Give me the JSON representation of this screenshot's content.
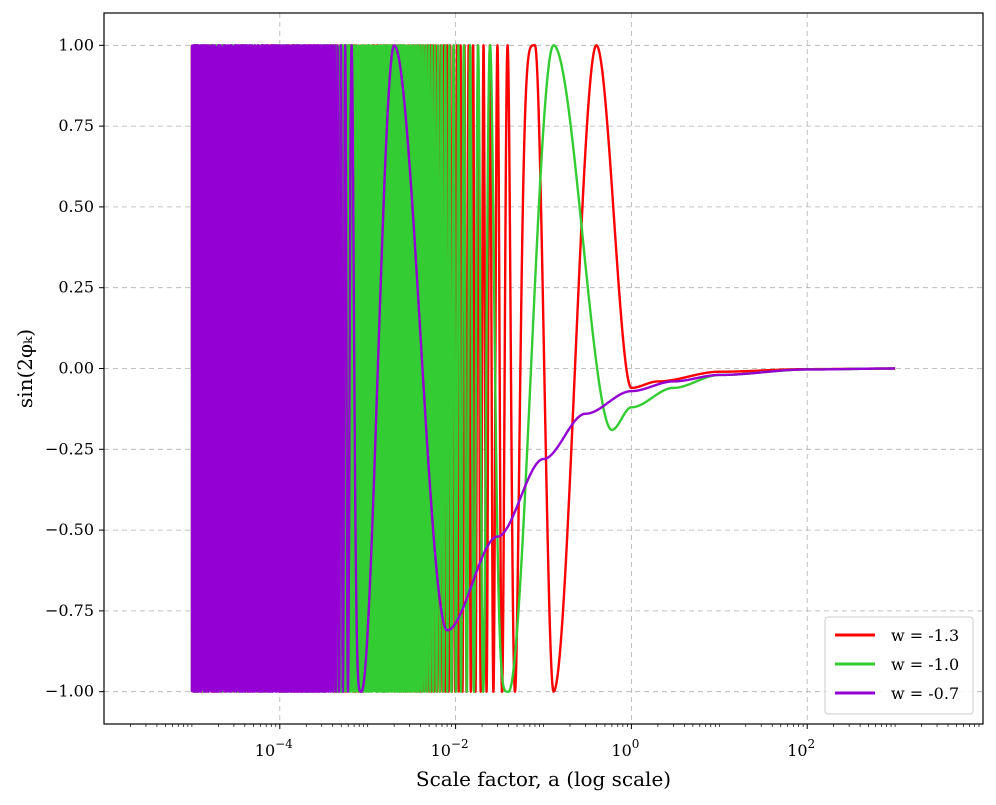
{
  "chart_data": {
    "type": "line",
    "title": "",
    "xlabel": "Scale factor, a (log scale)",
    "ylabel": "sin(2φₖ)",
    "x_scale": "log",
    "xlim": [
      1e-06,
      10000.0
    ],
    "ylim": [
      -1.1,
      1.1
    ],
    "grid": true,
    "legend_position": "lower right",
    "x_ticks": [
      {
        "value": 0.0001,
        "base": "10",
        "exp": "−4"
      },
      {
        "value": 0.01,
        "base": "10",
        "exp": "−2"
      },
      {
        "value": 1,
        "base": "10",
        "exp": "0"
      },
      {
        "value": 100,
        "base": "10",
        "exp": "2"
      }
    ],
    "y_ticks": [
      {
        "value": 1.0,
        "label": "1.00"
      },
      {
        "value": 0.75,
        "label": "0.75"
      },
      {
        "value": 0.5,
        "label": "0.50"
      },
      {
        "value": 0.25,
        "label": "0.25"
      },
      {
        "value": 0.0,
        "label": "0.00"
      },
      {
        "value": -0.25,
        "label": "−0.25"
      },
      {
        "value": -0.5,
        "label": "−0.50"
      },
      {
        "value": -0.75,
        "label": "−0.75"
      },
      {
        "value": -1.0,
        "label": "−1.00"
      }
    ],
    "series": [
      {
        "name": "w = -1.3",
        "color": "#ff0000",
        "x_range": [
          1e-05,
          1000
        ],
        "envelope": [
          [
            1e-05,
            1.0
          ],
          [
            0.5,
            1.0
          ],
          [
            1,
            0.0
          ]
        ],
        "oscillating_until": 0.5,
        "points": [
          [
            0.08,
            1.0
          ],
          [
            0.13,
            -1.0
          ],
          [
            0.4,
            1.0
          ],
          [
            1.0,
            -0.06
          ],
          [
            2.0,
            -0.04
          ],
          [
            10,
            -0.01
          ],
          [
            100,
            -0.002
          ],
          [
            1000,
            0.0
          ]
        ]
      },
      {
        "name": "w = -1.0",
        "color": "#33cc33",
        "x_range": [
          1e-05,
          1000
        ],
        "oscillating_until": 0.13,
        "points": [
          [
            0.04,
            -1.0
          ],
          [
            0.13,
            1.0
          ],
          [
            0.6,
            -0.19
          ],
          [
            1.0,
            -0.12
          ],
          [
            3.0,
            -0.06
          ],
          [
            10,
            -0.02
          ],
          [
            100,
            -0.003
          ],
          [
            1000,
            0.0
          ]
        ]
      },
      {
        "name": "w = -0.7",
        "color": "#9400d3",
        "x_range": [
          1e-05,
          1000
        ],
        "oscillating_until": 0.002,
        "points": [
          [
            0.00085,
            -1.0
          ],
          [
            0.002,
            1.0
          ],
          [
            0.008,
            -0.81
          ],
          [
            0.03,
            -0.52
          ],
          [
            0.1,
            -0.28
          ],
          [
            0.3,
            -0.14
          ],
          [
            1.0,
            -0.07
          ],
          [
            3.0,
            -0.04
          ],
          [
            10,
            -0.02
          ],
          [
            100,
            -0.003
          ],
          [
            1000,
            0.0
          ]
        ]
      }
    ]
  }
}
